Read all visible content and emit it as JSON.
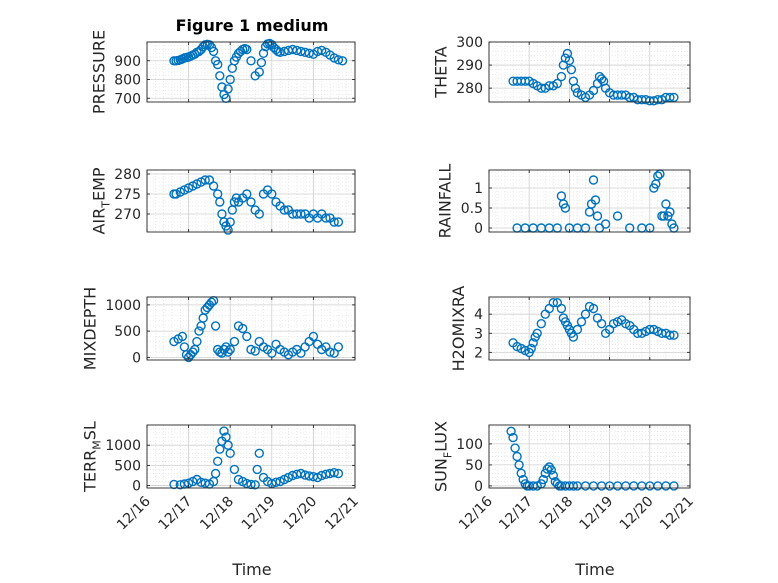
{
  "figure": {
    "title": "Figure 1 medium"
  },
  "colors": {
    "marker": "#0072BD",
    "axes": "#262626",
    "grid": "#dedede",
    "background": "#ffffff"
  },
  "chart_data": [
    {
      "id": "pressure",
      "type": "scatter",
      "title": "Figure 1 medium",
      "ylabel": "PRESSURE",
      "ylabel_sub": "",
      "ylabel_after": "",
      "xlim": [
        0,
        5
      ],
      "ylim": [
        680,
        1000
      ],
      "yticks": [
        700,
        800,
        900
      ],
      "ytick_labels": [
        "700",
        "800",
        "900"
      ],
      "x": [
        0.65,
        0.7,
        0.75,
        0.8,
        0.85,
        0.9,
        0.95,
        1.0,
        1.05,
        1.1,
        1.15,
        1.2,
        1.25,
        1.3,
        1.35,
        1.4,
        1.45,
        1.5,
        1.55,
        1.6,
        1.65,
        1.7,
        1.75,
        1.8,
        1.85,
        1.9,
        1.95,
        2.0,
        2.05,
        2.1,
        2.15,
        2.2,
        2.25,
        2.3,
        2.35,
        2.4,
        2.5,
        2.6,
        2.7,
        2.75,
        2.8,
        2.85,
        2.9,
        2.95,
        3.0,
        3.05,
        3.1,
        3.15,
        3.2,
        3.3,
        3.4,
        3.5,
        3.6,
        3.7,
        3.8,
        3.9,
        4.0,
        4.1,
        4.2,
        4.3,
        4.4,
        4.5,
        4.6,
        4.7
      ],
      "y": [
        900,
        900,
        902,
        905,
        910,
        915,
        918,
        920,
        925,
        930,
        935,
        945,
        950,
        960,
        975,
        985,
        988,
        985,
        970,
        950,
        900,
        880,
        820,
        760,
        720,
        700,
        750,
        800,
        860,
        900,
        920,
        940,
        950,
        960,
        965,
        960,
        900,
        820,
        840,
        890,
        940,
        975,
        990,
        992,
        985,
        970,
        960,
        950,
        945,
        950,
        955,
        960,
        955,
        950,
        945,
        940,
        935,
        950,
        955,
        945,
        930,
        915,
        905,
        900
      ]
    },
    {
      "id": "theta",
      "type": "scatter",
      "ylabel": "THETA",
      "ylabel_sub": "",
      "ylabel_after": "",
      "xlim": [
        0,
        5
      ],
      "ylim": [
        274,
        300
      ],
      "yticks": [
        280,
        290,
        300
      ],
      "ytick_labels": [
        "280",
        "290",
        "300"
      ],
      "x": [
        0.6,
        0.7,
        0.8,
        0.9,
        1.0,
        1.1,
        1.2,
        1.3,
        1.4,
        1.5,
        1.6,
        1.7,
        1.8,
        1.85,
        1.9,
        1.95,
        2.0,
        2.05,
        2.1,
        2.15,
        2.2,
        2.3,
        2.4,
        2.5,
        2.6,
        2.7,
        2.75,
        2.8,
        2.85,
        2.9,
        3.0,
        3.1,
        3.2,
        3.3,
        3.4,
        3.5,
        3.6,
        3.7,
        3.8,
        3.9,
        4.0,
        4.1,
        4.2,
        4.3,
        4.4,
        4.5,
        4.6
      ],
      "y": [
        283,
        283,
        283,
        283,
        283,
        282,
        281,
        280,
        280,
        281,
        281,
        282,
        285,
        290,
        293,
        295,
        292,
        288,
        283,
        280,
        278,
        277,
        276,
        277,
        279,
        282,
        285,
        284,
        283,
        280,
        278,
        277,
        277,
        277,
        277,
        276,
        276,
        275,
        275,
        275,
        274.5,
        274.5,
        275,
        275,
        276,
        276,
        276
      ]
    },
    {
      "id": "air_temp",
      "type": "scatter",
      "ylabel": "AIR",
      "ylabel_sub": "T",
      "ylabel_after": "EMP",
      "xlim": [
        0,
        5
      ],
      "ylim": [
        265.5,
        281
      ],
      "yticks": [
        270,
        275,
        280
      ],
      "ytick_labels": [
        "270",
        "275",
        "280"
      ],
      "x": [
        0.65,
        0.7,
        0.8,
        0.9,
        1.0,
        1.1,
        1.2,
        1.3,
        1.4,
        1.5,
        1.6,
        1.7,
        1.75,
        1.8,
        1.85,
        1.9,
        1.95,
        2.0,
        2.05,
        2.1,
        2.15,
        2.2,
        2.3,
        2.4,
        2.5,
        2.6,
        2.7,
        2.8,
        2.9,
        3.0,
        3.1,
        3.2,
        3.3,
        3.4,
        3.5,
        3.6,
        3.7,
        3.8,
        3.9,
        4.0,
        4.1,
        4.2,
        4.3,
        4.4,
        4.5,
        4.6
      ],
      "y": [
        275,
        275,
        275.5,
        276,
        276.5,
        277,
        277.5,
        278,
        278.5,
        278.5,
        277,
        275,
        273,
        270,
        268,
        267,
        266,
        268,
        271,
        273,
        274,
        273,
        274,
        275,
        273,
        271,
        270,
        275,
        276,
        275,
        273,
        272,
        271,
        271,
        270,
        270,
        270,
        270,
        269,
        270,
        269,
        270,
        269,
        269,
        268,
        268
      ]
    },
    {
      "id": "rainfall",
      "type": "scatter",
      "ylabel": "RAINFALL",
      "ylabel_sub": "",
      "ylabel_after": "",
      "xlim": [
        0,
        5
      ],
      "ylim": [
        -0.1,
        1.45
      ],
      "yticks": [
        0,
        0.5,
        1
      ],
      "ytick_labels": [
        "0",
        "0.5",
        "1"
      ],
      "x": [
        0.7,
        0.9,
        1.1,
        1.3,
        1.5,
        1.7,
        1.8,
        1.85,
        1.9,
        2.0,
        2.2,
        2.4,
        2.5,
        2.55,
        2.6,
        2.65,
        2.7,
        2.75,
        2.9,
        3.2,
        3.5,
        3.8,
        4.0,
        4.1,
        4.15,
        4.2,
        4.25,
        4.3,
        4.35,
        4.4,
        4.45,
        4.5,
        4.55,
        4.6
      ],
      "y": [
        0,
        0,
        0,
        0,
        0,
        0,
        0.8,
        0.6,
        0.5,
        0,
        0,
        0,
        0.4,
        0.6,
        1.2,
        0.7,
        0.3,
        0,
        0.1,
        0.3,
        0,
        0,
        0,
        1.0,
        1.1,
        1.3,
        1.35,
        0.3,
        0.3,
        0.6,
        0.3,
        0.4,
        0.1,
        0
      ]
    },
    {
      "id": "mixdepth",
      "type": "scatter",
      "ylabel": "MIXDEPTH",
      "ylabel_sub": "",
      "ylabel_after": "",
      "xlim": [
        0,
        5
      ],
      "ylim": [
        -50,
        1150
      ],
      "yticks": [
        0,
        500,
        1000
      ],
      "ytick_labels": [
        "0",
        "500",
        "1000"
      ],
      "x": [
        0.65,
        0.75,
        0.85,
        0.9,
        0.95,
        1.0,
        1.05,
        1.1,
        1.15,
        1.2,
        1.25,
        1.3,
        1.35,
        1.4,
        1.45,
        1.5,
        1.55,
        1.6,
        1.65,
        1.7,
        1.75,
        1.8,
        1.85,
        1.9,
        1.95,
        2.0,
        2.1,
        2.2,
        2.3,
        2.4,
        2.5,
        2.6,
        2.7,
        2.8,
        2.9,
        3.0,
        3.1,
        3.2,
        3.3,
        3.4,
        3.5,
        3.6,
        3.7,
        3.8,
        3.9,
        4.0,
        4.1,
        4.2,
        4.3,
        4.4,
        4.5,
        4.6
      ],
      "y": [
        300,
        350,
        400,
        200,
        50,
        0,
        50,
        100,
        150,
        300,
        500,
        600,
        750,
        900,
        950,
        1000,
        1050,
        1080,
        600,
        150,
        100,
        80,
        150,
        200,
        100,
        150,
        300,
        600,
        550,
        400,
        150,
        120,
        300,
        200,
        150,
        80,
        250,
        150,
        100,
        50,
        100,
        150,
        80,
        200,
        300,
        400,
        250,
        150,
        200,
        100,
        80,
        200
      ]
    },
    {
      "id": "h2omixra",
      "type": "scatter",
      "ylabel": "H2OMIXRA",
      "ylabel_sub": "",
      "ylabel_after": "",
      "xlim": [
        0,
        5
      ],
      "ylim": [
        1.6,
        4.9
      ],
      "yticks": [
        2,
        3,
        4
      ],
      "ytick_labels": [
        "2",
        "3",
        "4"
      ],
      "x": [
        0.6,
        0.7,
        0.8,
        0.9,
        1.0,
        1.05,
        1.1,
        1.15,
        1.2,
        1.3,
        1.4,
        1.5,
        1.6,
        1.7,
        1.8,
        1.85,
        1.9,
        1.95,
        2.0,
        2.05,
        2.1,
        2.2,
        2.3,
        2.4,
        2.5,
        2.6,
        2.7,
        2.8,
        2.9,
        3.0,
        3.1,
        3.2,
        3.3,
        3.4,
        3.5,
        3.6,
        3.7,
        3.8,
        3.9,
        4.0,
        4.1,
        4.2,
        4.3,
        4.4,
        4.5,
        4.6
      ],
      "y": [
        2.5,
        2.3,
        2.2,
        2.1,
        2.0,
        2.2,
        2.5,
        2.8,
        3.0,
        3.5,
        4.0,
        4.3,
        4.6,
        4.6,
        4.3,
        3.8,
        3.6,
        3.4,
        3.2,
        3.0,
        2.8,
        3.2,
        3.6,
        4.0,
        4.4,
        4.3,
        3.8,
        3.5,
        3.0,
        3.2,
        3.5,
        3.6,
        3.7,
        3.5,
        3.4,
        3.2,
        3.0,
        3.0,
        3.1,
        3.2,
        3.2,
        3.1,
        3.0,
        3.0,
        2.9,
        2.9
      ]
    },
    {
      "id": "terr_msl",
      "type": "scatter",
      "ylabel": "TERR",
      "ylabel_sub": "M",
      "ylabel_after": "SL",
      "xlim": [
        0,
        5
      ],
      "ylim": [
        -60,
        1500
      ],
      "yticks": [
        0,
        500,
        1000
      ],
      "ytick_labels": [
        "0",
        "500",
        "1000"
      ],
      "x": [
        0.65,
        0.8,
        0.9,
        1.0,
        1.1,
        1.2,
        1.3,
        1.4,
        1.5,
        1.6,
        1.65,
        1.7,
        1.75,
        1.8,
        1.85,
        1.9,
        1.95,
        2.0,
        2.1,
        2.2,
        2.3,
        2.4,
        2.5,
        2.6,
        2.65,
        2.7,
        2.8,
        2.9,
        3.0,
        3.1,
        3.2,
        3.3,
        3.4,
        3.5,
        3.6,
        3.7,
        3.8,
        3.9,
        4.0,
        4.1,
        4.2,
        4.3,
        4.4,
        4.5,
        4.6
      ],
      "y": [
        30,
        20,
        40,
        60,
        100,
        150,
        80,
        60,
        40,
        100,
        300,
        600,
        900,
        1100,
        1350,
        1200,
        1000,
        800,
        400,
        150,
        100,
        50,
        30,
        20,
        400,
        800,
        200,
        100,
        50,
        80,
        100,
        150,
        200,
        250,
        280,
        300,
        260,
        240,
        220,
        200,
        250,
        280,
        300,
        320,
        300
      ]
    },
    {
      "id": "sun_flux",
      "type": "scatter",
      "ylabel": "SUN",
      "ylabel_sub": "F",
      "ylabel_after": "LUX",
      "xlim": [
        0,
        5
      ],
      "ylim": [
        -5,
        145
      ],
      "yticks": [
        0,
        50,
        100
      ],
      "ytick_labels": [
        "0",
        "50",
        "100"
      ],
      "x": [
        0.55,
        0.6,
        0.65,
        0.7,
        0.75,
        0.8,
        0.85,
        0.9,
        0.95,
        1.0,
        1.1,
        1.2,
        1.3,
        1.35,
        1.4,
        1.45,
        1.5,
        1.55,
        1.6,
        1.65,
        1.7,
        1.75,
        1.8,
        1.9,
        2.0,
        2.1,
        2.2,
        2.4,
        2.6,
        2.8,
        3.0,
        3.2,
        3.4,
        3.6,
        3.8,
        4.0,
        4.2,
        4.4,
        4.6
      ],
      "y": [
        130,
        115,
        90,
        70,
        50,
        30,
        15,
        5,
        0,
        0,
        0,
        0,
        5,
        15,
        30,
        40,
        45,
        38,
        25,
        10,
        5,
        0,
        0,
        0,
        0,
        0,
        0,
        0,
        0,
        0,
        0,
        0,
        0,
        0,
        0,
        0,
        0,
        0,
        0
      ]
    }
  ],
  "x_axis": {
    "xlabel": "Time",
    "ticks": [
      0,
      1,
      2,
      3,
      4,
      5
    ],
    "tick_labels": [
      "12/16",
      "12/17",
      "12/18",
      "12/19",
      "12/20",
      "12/21"
    ]
  }
}
